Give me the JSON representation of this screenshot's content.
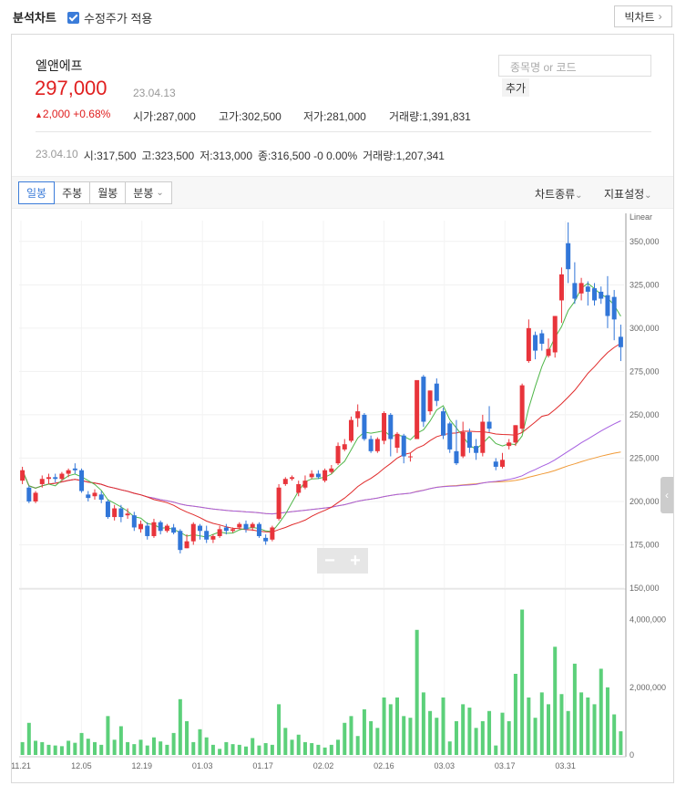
{
  "topbar": {
    "title": "분석차트",
    "adjusted_label": "수정주가 적용",
    "big_chart_label": "빅차트"
  },
  "stock": {
    "name": "엘앤에프",
    "price": "297,000",
    "date": "23.04.13",
    "change": "2,000 +0.68%",
    "open": "시가:287,000",
    "high": "고가:302,500",
    "low": "저가:281,000",
    "volume": "거래량:1,391,831"
  },
  "search": {
    "placeholder": "종목명 or 코드",
    "add_label": "추가"
  },
  "prev_day": {
    "date": "23.04.10",
    "open": "시:317,500",
    "high": "고:323,500",
    "low": "저:313,000",
    "close": "종:316,500 -0 0.00%",
    "volume": "거래량:1,207,341"
  },
  "tabs": [
    "일봉",
    "주봉",
    "월봉",
    "분봉"
  ],
  "menus": {
    "chart_type": "차트종류",
    "indicator": "지표설정"
  },
  "colors": {
    "up": "#e8343b",
    "down": "#3176d8",
    "ma5": "#4fb649",
    "ma20": "#e02b2b",
    "ma60": "#a65fe0",
    "ma120": "#f09a37",
    "volume": "#5cd07a"
  },
  "chart_data": {
    "type": "candlestick",
    "scale_label": "Linear",
    "price_ticks": [
      "350,000",
      "325,000",
      "300,000",
      "275,000",
      "250,000",
      "225,000",
      "200,000",
      "175,000",
      "150,000"
    ],
    "price_range": [
      150000,
      362000
    ],
    "volume_ticks": [
      "4,000,000",
      "2,000,000",
      "0"
    ],
    "volume_range": [
      0,
      4800000
    ],
    "x_labels": [
      "11.21",
      "12.05",
      "12.19",
      "01.03",
      "01.17",
      "02.02",
      "02.16",
      "03.03",
      "03.17",
      "03.31"
    ],
    "candles": [
      [
        212000,
        218000,
        220000,
        210000
      ],
      [
        208000,
        200000,
        209000,
        199000
      ],
      [
        200000,
        205000,
        206000,
        199000
      ],
      [
        210000,
        213000,
        215000,
        208000
      ],
      [
        213000,
        214000,
        216000,
        210000
      ],
      [
        214000,
        213000,
        216000,
        211000
      ],
      [
        213000,
        216000,
        217000,
        212000
      ],
      [
        216000,
        218000,
        219000,
        214000
      ],
      [
        219000,
        218000,
        222000,
        216000
      ],
      [
        218000,
        206000,
        219000,
        205000
      ],
      [
        204000,
        202000,
        206000,
        200000
      ],
      [
        203000,
        205000,
        207000,
        201000
      ],
      [
        204000,
        201000,
        206000,
        199000
      ],
      [
        200000,
        191000,
        201000,
        190000
      ],
      [
        191000,
        196000,
        198000,
        189000
      ],
      [
        196000,
        191000,
        198000,
        188000
      ],
      [
        192000,
        193000,
        196000,
        190000
      ],
      [
        192000,
        185000,
        194000,
        183000
      ],
      [
        184000,
        187000,
        189000,
        182000
      ],
      [
        186000,
        180000,
        188000,
        178000
      ],
      [
        180000,
        188000,
        190000,
        179000
      ],
      [
        188000,
        183000,
        189000,
        181000
      ],
      [
        183000,
        186000,
        187000,
        182000
      ],
      [
        185000,
        182000,
        187000,
        181000
      ],
      [
        183000,
        172000,
        184000,
        170000
      ],
      [
        173000,
        177000,
        181000,
        173000
      ],
      [
        177000,
        187000,
        188000,
        175000
      ],
      [
        186000,
        183000,
        187000,
        178000
      ],
      [
        183000,
        178000,
        186000,
        176000
      ],
      [
        178000,
        180000,
        181000,
        176000
      ],
      [
        180000,
        184000,
        186000,
        179000
      ],
      [
        185000,
        183000,
        187000,
        181000
      ],
      [
        183000,
        184000,
        185000,
        182000
      ],
      [
        185000,
        187000,
        188000,
        184000
      ],
      [
        187000,
        184000,
        189000,
        182000
      ],
      [
        185000,
        187000,
        188000,
        183000
      ],
      [
        187000,
        180000,
        188000,
        179000
      ],
      [
        179000,
        177000,
        181000,
        175000
      ],
      [
        178000,
        185000,
        186000,
        177000
      ],
      [
        190000,
        208000,
        210000,
        189000
      ],
      [
        210000,
        213000,
        214000,
        209000
      ],
      [
        213000,
        214000,
        215000,
        212000
      ],
      [
        205000,
        210000,
        212000,
        203000
      ],
      [
        208000,
        212000,
        215000,
        207000
      ],
      [
        214000,
        216000,
        218000,
        213000
      ],
      [
        216000,
        214000,
        218000,
        213000
      ],
      [
        212000,
        218000,
        219000,
        211000
      ],
      [
        217000,
        219000,
        221000,
        216000
      ],
      [
        222000,
        232000,
        234000,
        221000
      ],
      [
        230000,
        233000,
        236000,
        229000
      ],
      [
        235000,
        247000,
        249000,
        234000
      ],
      [
        248000,
        252000,
        256000,
        243000
      ],
      [
        250000,
        236000,
        251000,
        235000
      ],
      [
        236000,
        229000,
        238000,
        228000
      ],
      [
        229000,
        236000,
        237000,
        228000
      ],
      [
        235000,
        251000,
        252000,
        233000
      ],
      [
        250000,
        236000,
        251000,
        226000
      ],
      [
        231000,
        239000,
        240000,
        228000
      ],
      [
        238000,
        226000,
        239000,
        222000
      ],
      [
        226000,
        226000,
        228000,
        223000
      ],
      [
        236000,
        270000,
        266000,
        250000
      ],
      [
        272000,
        246000,
        273000,
        243000
      ],
      [
        252000,
        264000,
        264000,
        250000
      ],
      [
        268000,
        258000,
        271000,
        255000
      ],
      [
        252000,
        238000,
        254000,
        236000
      ],
      [
        245000,
        230000,
        246000,
        228000
      ],
      [
        229000,
        222000,
        247000,
        221000
      ],
      [
        226000,
        240000,
        246000,
        225000
      ],
      [
        240000,
        231000,
        242000,
        228000
      ],
      [
        232000,
        228000,
        236000,
        224000
      ],
      [
        228000,
        246000,
        250000,
        226000
      ],
      [
        246000,
        242000,
        255000,
        240000
      ],
      [
        223000,
        220000,
        225000,
        218000
      ],
      [
        220000,
        224000,
        228000,
        219000
      ],
      [
        232000,
        234000,
        236000,
        230000
      ],
      [
        234000,
        244000,
        244000,
        232000
      ],
      [
        242000,
        267000,
        268000,
        240000
      ],
      [
        281000,
        300000,
        305000,
        280000
      ],
      [
        296000,
        287000,
        298000,
        282000
      ],
      [
        297000,
        291000,
        299000,
        287000
      ],
      [
        284000,
        288000,
        294000,
        283000
      ],
      [
        286000,
        307000,
        307000,
        283000
      ],
      [
        316000,
        331000,
        335000,
        303000
      ],
      [
        349000,
        334000,
        361000,
        326000
      ],
      [
        326000,
        317000,
        338000,
        314000
      ],
      [
        320000,
        326000,
        329000,
        316000
      ],
      [
        324000,
        321000,
        327000,
        313000
      ],
      [
        323000,
        316000,
        326000,
        313000
      ],
      [
        321000,
        317000,
        324000,
        314000
      ],
      [
        319000,
        307000,
        330000,
        300000
      ],
      [
        318000,
        305000,
        322000,
        293000
      ],
      [
        295000,
        289000,
        302000,
        281000
      ]
    ],
    "volumes": [
      380000,
      950000,
      420000,
      380000,
      300000,
      280000,
      260000,
      420000,
      360000,
      650000,
      480000,
      380000,
      300000,
      1150000,
      450000,
      850000,
      380000,
      320000,
      450000,
      280000,
      520000,
      400000,
      300000,
      650000,
      1650000,
      1000000,
      380000,
      760000,
      520000,
      300000,
      180000,
      380000,
      320000,
      300000,
      250000,
      500000,
      280000,
      350000,
      300000,
      1500000,
      800000,
      450000,
      600000,
      380000,
      350000,
      300000,
      220000,
      300000,
      450000,
      950000,
      1150000,
      560000,
      1350000,
      1000000,
      800000,
      1700000,
      1500000,
      1700000,
      1150000,
      1100000,
      3700000,
      1850000,
      1300000,
      1100000,
      1700000,
      400000,
      1000000,
      1500000,
      1400000,
      800000,
      1000000,
      1300000,
      280000,
      1250000,
      1000000,
      2400000,
      4300000,
      1700000,
      1100000,
      1850000,
      1500000,
      3200000,
      1800000,
      1300000,
      2700000,
      1850000,
      1700000,
      1500000,
      2550000,
      2000000,
      1200000,
      700000
    ]
  }
}
